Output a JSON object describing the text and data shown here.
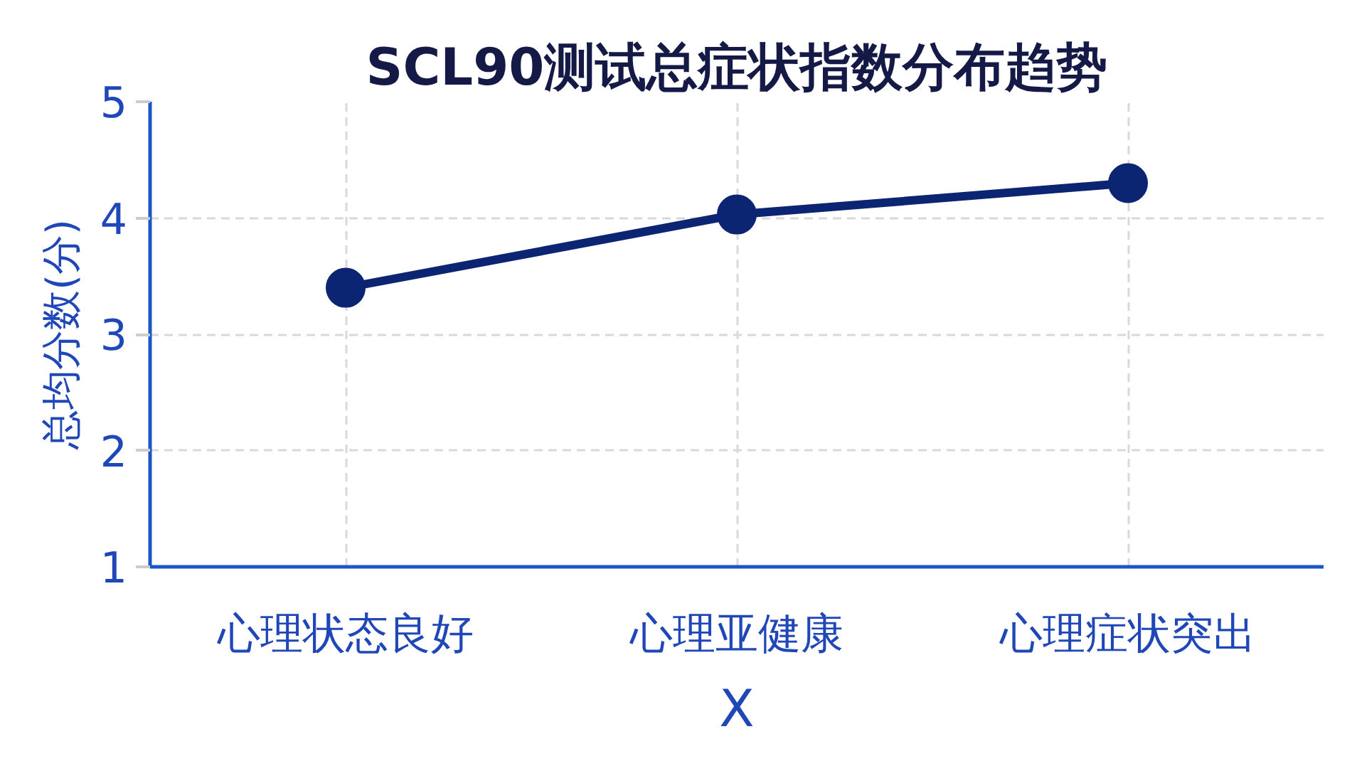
{
  "chart_data": {
    "type": "line",
    "title": "SCL90测试总症状指数分布趋势",
    "xlabel": "X",
    "ylabel": "总均分数(分)",
    "categories": [
      "心理状态良好",
      "心理亚健康",
      "心理症状突出"
    ],
    "series": [
      {
        "color": "#0b2573",
        "values": [
          3.4,
          4.03,
          4.3
        ]
      }
    ],
    "ylim": [
      1,
      5
    ],
    "yticks": [
      1,
      2,
      3,
      4,
      5
    ],
    "grid": true,
    "marker": "circle",
    "line_style": "solid"
  }
}
